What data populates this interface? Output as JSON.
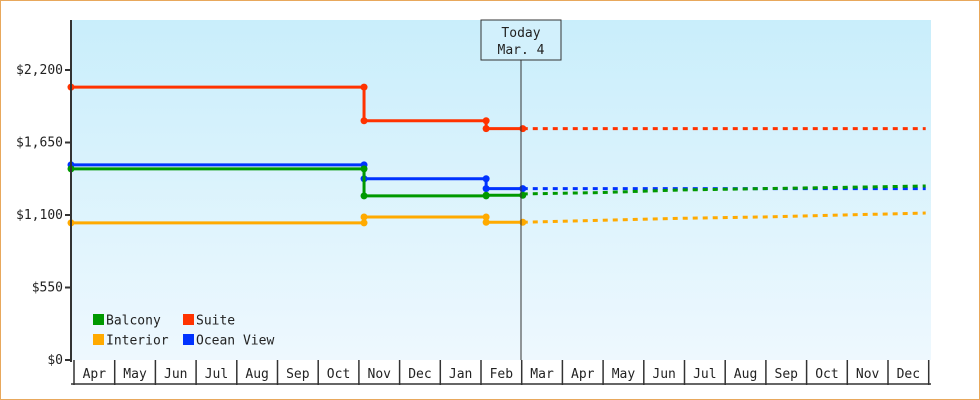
{
  "chart_data": {
    "type": "line",
    "title": "",
    "xlabel": "",
    "ylabel": "",
    "ylim": [
      0,
      2750
    ],
    "y_ticks": [
      {
        "value": 0,
        "label": "$0"
      },
      {
        "value": 550,
        "label": "$550"
      },
      {
        "value": 1100,
        "label": "$1,100"
      },
      {
        "value": 1650,
        "label": "$1,650"
      },
      {
        "value": 2200,
        "label": "$2,200"
      }
    ],
    "categories": [
      "Apr",
      "May",
      "Jun",
      "Jul",
      "Aug",
      "Sep",
      "Oct",
      "Nov",
      "Dec",
      "Jan",
      "Feb",
      "Mar",
      "Apr",
      "May",
      "Jun",
      "Jul",
      "Aug",
      "Sep",
      "Oct",
      "Nov",
      "Dec"
    ],
    "grid": false,
    "legend_position": "lower-left-inside",
    "today_marker": {
      "line1": "Today",
      "line2": "Mar. 4"
    },
    "background_gradient": [
      "#c9eefb",
      "#eef8fe"
    ],
    "series": [
      {
        "name": "Suite",
        "color": "#ff3300",
        "history": [
          {
            "x": 0.0,
            "y": 2070
          },
          {
            "x": 7.2,
            "y": 2070
          },
          {
            "x": 7.2,
            "y": 1815
          },
          {
            "x": 10.2,
            "y": 1815
          },
          {
            "x": 10.2,
            "y": 1755
          },
          {
            "x": 11.1,
            "y": 1755
          }
        ],
        "forecast": [
          {
            "x": 11.1,
            "y": 1755
          },
          {
            "x": 21.0,
            "y": 1755
          }
        ]
      },
      {
        "name": "Ocean View",
        "color": "#0033ff",
        "history": [
          {
            "x": 0.0,
            "y": 1480
          },
          {
            "x": 7.2,
            "y": 1480
          },
          {
            "x": 7.2,
            "y": 1375
          },
          {
            "x": 10.2,
            "y": 1375
          },
          {
            "x": 10.2,
            "y": 1300
          },
          {
            "x": 11.1,
            "y": 1300
          }
        ],
        "forecast": [
          {
            "x": 11.1,
            "y": 1300
          },
          {
            "x": 21.0,
            "y": 1300
          }
        ]
      },
      {
        "name": "Balcony",
        "color": "#009900",
        "history": [
          {
            "x": 0.0,
            "y": 1450
          },
          {
            "x": 7.2,
            "y": 1450
          },
          {
            "x": 7.2,
            "y": 1245
          },
          {
            "x": 10.2,
            "y": 1245
          },
          {
            "x": 10.2,
            "y": 1250
          },
          {
            "x": 11.1,
            "y": 1250
          }
        ],
        "forecast": [
          {
            "x": 11.1,
            "y": 1260
          },
          {
            "x": 13.0,
            "y": 1270
          },
          {
            "x": 15.0,
            "y": 1290
          },
          {
            "x": 17.0,
            "y": 1300
          },
          {
            "x": 19.0,
            "y": 1310
          },
          {
            "x": 21.0,
            "y": 1320
          }
        ]
      },
      {
        "name": "Interior",
        "color": "#ffaa00",
        "history": [
          {
            "x": 0.0,
            "y": 1040
          },
          {
            "x": 7.2,
            "y": 1040
          },
          {
            "x": 7.2,
            "y": 1085
          },
          {
            "x": 10.2,
            "y": 1085
          },
          {
            "x": 10.2,
            "y": 1045
          },
          {
            "x": 11.1,
            "y": 1045
          }
        ],
        "forecast": [
          {
            "x": 11.1,
            "y": 1045
          },
          {
            "x": 13.0,
            "y": 1060
          },
          {
            "x": 15.0,
            "y": 1075
          },
          {
            "x": 17.0,
            "y": 1085
          },
          {
            "x": 19.0,
            "y": 1100
          },
          {
            "x": 21.0,
            "y": 1115
          }
        ]
      }
    ],
    "legend": [
      {
        "name": "Balcony",
        "color": "#009900"
      },
      {
        "name": "Suite",
        "color": "#ff3300"
      },
      {
        "name": "Interior",
        "color": "#ffaa00"
      },
      {
        "name": "Ocean View",
        "color": "#0033ff"
      }
    ]
  }
}
